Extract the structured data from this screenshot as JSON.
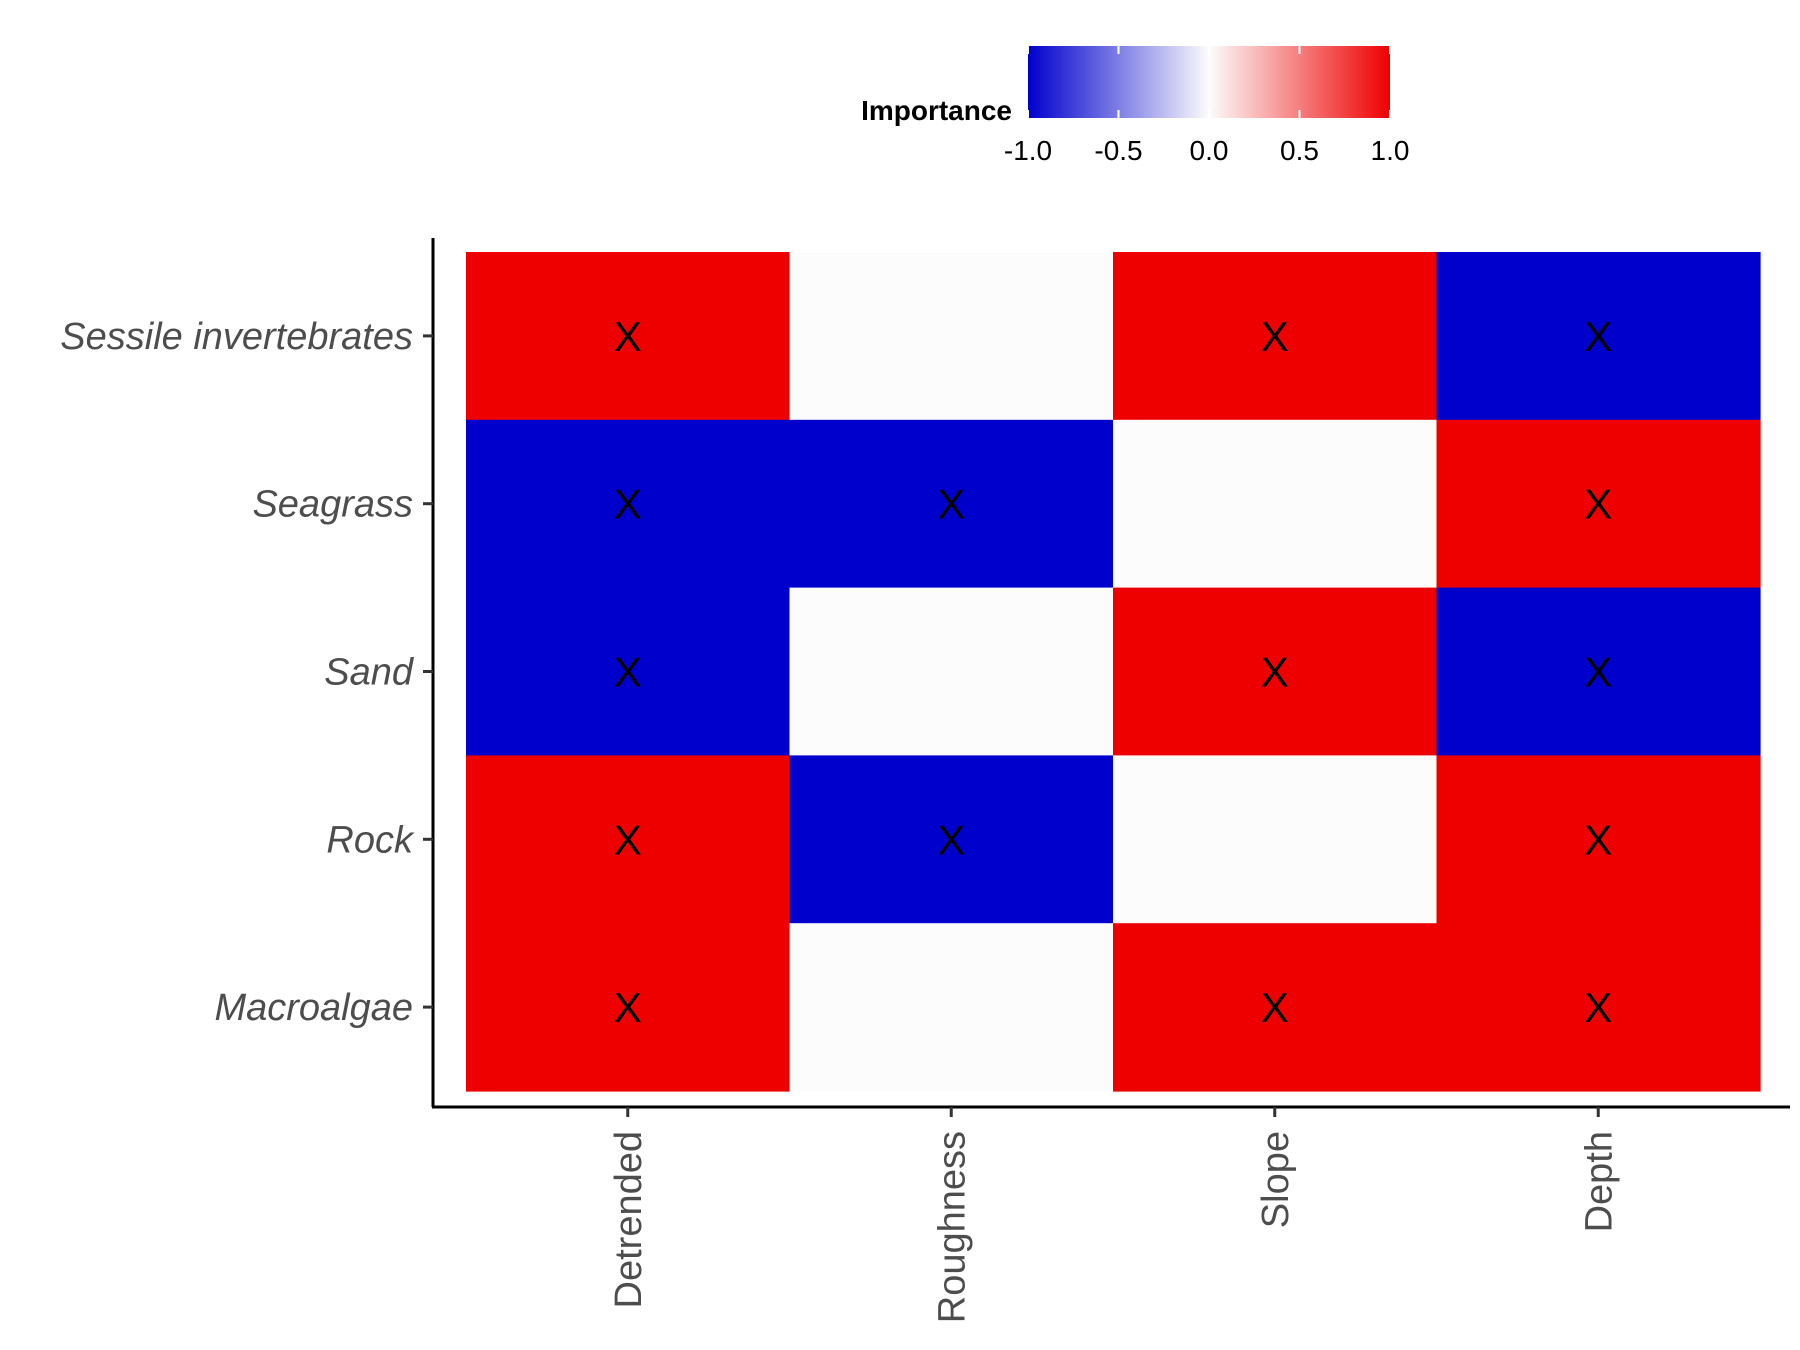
{
  "chart_data": {
    "type": "heatmap",
    "x_categories": [
      "Detrended",
      "Roughness",
      "Slope",
      "Depth"
    ],
    "y_categories": [
      "Sessile invertebrates",
      "Seagrass",
      "Sand",
      "Rock",
      "Macroalgae"
    ],
    "values": [
      [
        1,
        0,
        1,
        -1
      ],
      [
        -1,
        -1,
        0,
        1
      ],
      [
        -1,
        0,
        1,
        -1
      ],
      [
        1,
        -1,
        0,
        1
      ],
      [
        1,
        0,
        1,
        1
      ]
    ],
    "marks": [
      [
        "X",
        "",
        "X",
        "X"
      ],
      [
        "X",
        "X",
        "",
        "X"
      ],
      [
        "X",
        "",
        "X",
        "X"
      ],
      [
        "X",
        "X",
        "",
        "X"
      ],
      [
        "X",
        "",
        "X",
        "X"
      ]
    ],
    "legend": {
      "title": "Importance",
      "placement": "top",
      "range": [
        -1.0,
        1.0
      ],
      "ticks": [
        "-1.0",
        "-0.5",
        "0.0",
        "0.5",
        "1.0"
      ],
      "low_color": "#0000cd",
      "mid_color": "#fcfcfc",
      "high_color": "#ee0000"
    },
    "xlabel": "",
    "ylabel": "",
    "grid": false
  }
}
